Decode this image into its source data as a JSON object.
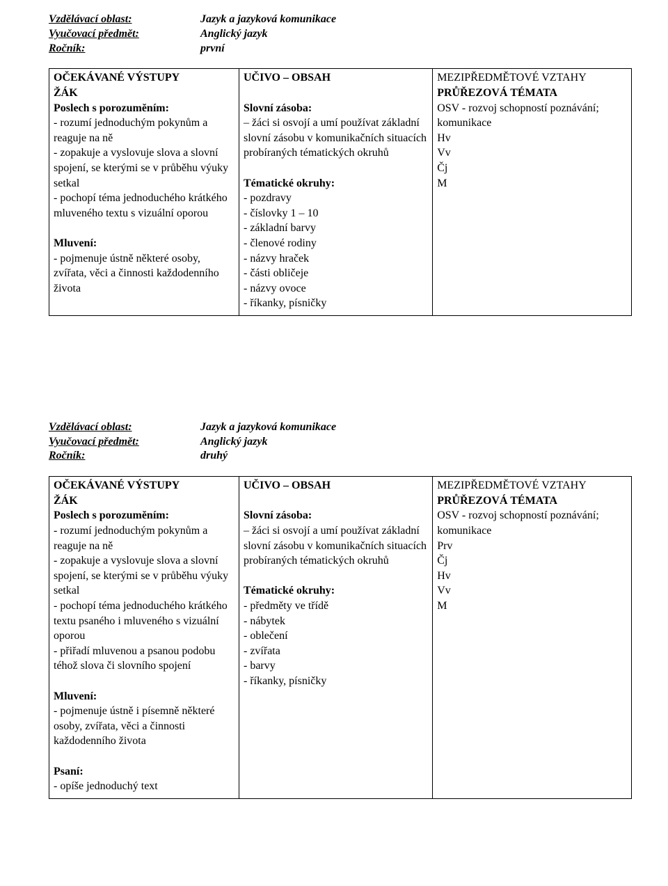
{
  "s1": {
    "hdr": {
      "area_label": "Vzdělávací oblast:",
      "area_val": "Jazyk a jazyková komunikace",
      "subj_label": "Vyučovací předmět:",
      "subj_val": "Anglický jazyk",
      "grade_label": "Ročník:",
      "grade_val": "první"
    },
    "tbl": {
      "c1": {
        "h1": "OČEKÁVANÉ VÝSTUPY",
        "h2": "ŽÁK",
        "g1": "Poslech s porozuměním:",
        "l1": "- rozumí jednoduchým pokynům a reaguje na ně",
        "l2": "- zopakuje a vyslovuje slova a slovní spojení, se kterými se v průběhu výuky setkal",
        "l3": "- pochopí téma jednoduchého krátkého mluveného textu s vizuální oporou",
        "g2": "Mluvení:",
        "l4": "- pojmenuje ústně některé osoby, zvířata, věci a činnosti každodenního života"
      },
      "c2": {
        "h1": "UČIVO – OBSAH",
        "g1": "Slovní zásoba:",
        "l1": " – žáci si osvojí a umí používat základní slovní zásobu v komunikačních situacích probíraných tématických okruhů",
        "g2": "Tématické okruhy:",
        "l2": "- pozdravy",
        "l3": "- číslovky 1 – 10",
        "l4": "- základní barvy",
        "l5": "- členové rodiny",
        "l6": "- názvy hraček",
        "l7": "- části obličeje",
        "l8": "- názvy ovoce",
        "l9": "- říkanky, písničky"
      },
      "c3": {
        "h1": "MEZIPŘEDMĚTOVÉ VZTAHY",
        "h2": "PRŮŘEZOVÁ TÉMATA",
        "l1": "OSV - rozvoj schopností poznávání; komunikace",
        "l2": "Hv",
        "l3": "Vv",
        "l4": "Čj",
        "l5": "M"
      }
    }
  },
  "s2": {
    "hdr": {
      "area_label": "Vzdělávací oblast:",
      "area_val": "Jazyk a jazyková komunikace",
      "subj_label": "Vyučovací předmět:",
      "subj_val": "Anglický jazyk",
      "grade_label": "Ročník:",
      "grade_val": "druhý"
    },
    "tbl": {
      "c1": {
        "h1": "OČEKÁVANÉ VÝSTUPY",
        "h2": "ŽÁK",
        "g1": "Poslech s porozuměním:",
        "l1": "- rozumí jednoduchým pokynům a reaguje na ně",
        "l2": "- zopakuje a vyslovuje slova a slovní spojení, se kterými se v průběhu výuky setkal",
        "l3": "- pochopí téma jednoduchého krátkého textu psaného i mluveného s vizuální oporou",
        "l4": "- přiřadí mluvenou a psanou podobu téhož slova či slovního spojení",
        "g2": "Mluvení:",
        "l5": "- pojmenuje ústně i písemně některé osoby, zvířata, věci a činnosti každodenního života",
        "g3": "Psaní:",
        "l6": "- opíše jednoduchý text"
      },
      "c2": {
        "h1": "UČIVO – OBSAH",
        "g1": "Slovní zásoba:",
        "l1": " – žáci si osvojí a umí používat základní slovní zásobu v komunikačních situacích probíraných tématických okruhů",
        "g2": "Tématické okruhy:",
        "l2": "- předměty ve třídě",
        "l3": "- nábytek",
        "l4": "- oblečení",
        "l5": "- zvířata",
        "l6": "- barvy",
        "l7": "- říkanky, písničky"
      },
      "c3": {
        "h1": "MEZIPŘEDMĚTOVÉ VZTAHY",
        "h2": "PRŮŘEZOVÁ TÉMATA",
        "l1": "OSV - rozvoj schopností poznávání; komunikace",
        "l2": "Prv",
        "l3": "Čj",
        "l4": "Hv",
        "l5": "Vv",
        "l6": "M"
      }
    }
  }
}
